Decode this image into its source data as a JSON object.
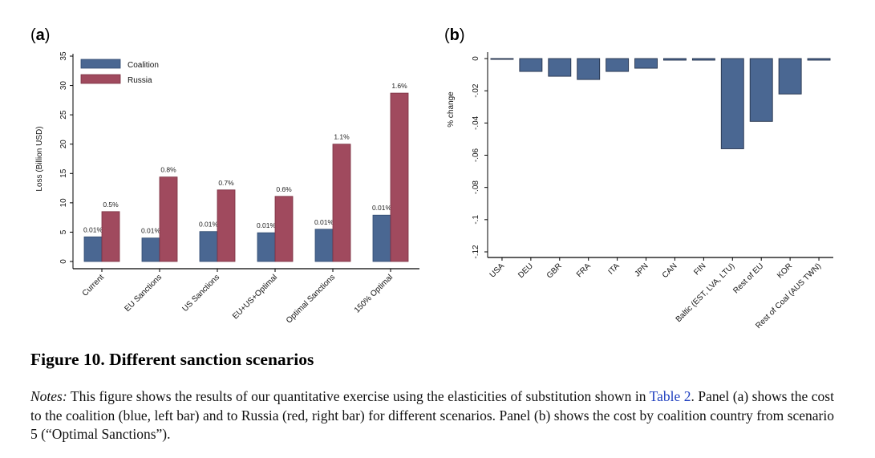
{
  "chart_data": [
    {
      "type": "bar",
      "panel_label": "a",
      "categories": [
        "Current",
        "EU Sanctions",
        "US Sanctions",
        "EU+US+Optimal",
        "Optimal Sanctions",
        "150% Optimal"
      ],
      "series": [
        {
          "name": "Coalition",
          "color": "#4a6792",
          "values": [
            4.2,
            4.0,
            5.1,
            4.9,
            5.5,
            7.9
          ],
          "labels": [
            "0.01%",
            "0.01%",
            "0.01%",
            "0.01%",
            "0.01%",
            "0.01%"
          ]
        },
        {
          "name": "Russia",
          "color": "#a04a5e",
          "values": [
            8.5,
            14.4,
            12.2,
            11.1,
            20.0,
            28.7
          ],
          "labels": [
            "0.5%",
            "0.8%",
            "0.7%",
            "0.6%",
            "1.1%",
            "1.6%"
          ]
        }
      ],
      "ylabel": "Loss (Billion USD)",
      "ylim": [
        0,
        35
      ],
      "yticks": [
        0,
        5,
        10,
        15,
        20,
        25,
        30,
        35
      ],
      "legend_position": "top-left",
      "grid": false
    },
    {
      "type": "bar",
      "panel_label": "b",
      "categories": [
        "USA",
        "DEU",
        "GBR",
        "FRA",
        "ITA",
        "JPN",
        "CAN",
        "FIN",
        "Baltic (EST, LVA, LTU)",
        "Rest of EU",
        "KOR",
        "Rest of Coal (AUS TWN)"
      ],
      "series": [
        {
          "name": "",
          "color": "#4a6792",
          "values": [
            -0.0005,
            -0.008,
            -0.011,
            -0.013,
            -0.008,
            -0.006,
            -0.001,
            -0.001,
            -0.056,
            -0.039,
            -0.022,
            -0.001
          ]
        }
      ],
      "ylabel": "% change",
      "ylim": [
        -0.12,
        0
      ],
      "yticks": [
        0,
        -0.02,
        -0.04,
        -0.06,
        -0.08,
        -0.1,
        -0.12
      ],
      "ytick_labels": [
        "0",
        "-.02",
        "-.04",
        "-.06",
        "-.08",
        "-.1",
        "-.12"
      ],
      "grid": false
    }
  ],
  "caption": {
    "title": "Figure 10. Different sanction scenarios",
    "notes_label": "Notes:",
    "notes_part1": " This figure shows the results of our quantitative exercise using the elasticities of substitution shown in ",
    "notes_link": "Table 2",
    "notes_part2": ". Panel (a) shows the cost to the coalition (blue, left bar) and to Russia (red, right bar) for different scenar­ios. Panel (b) shows the cost by coalition country from scenario 5 (“Optimal Sanctions”)."
  }
}
